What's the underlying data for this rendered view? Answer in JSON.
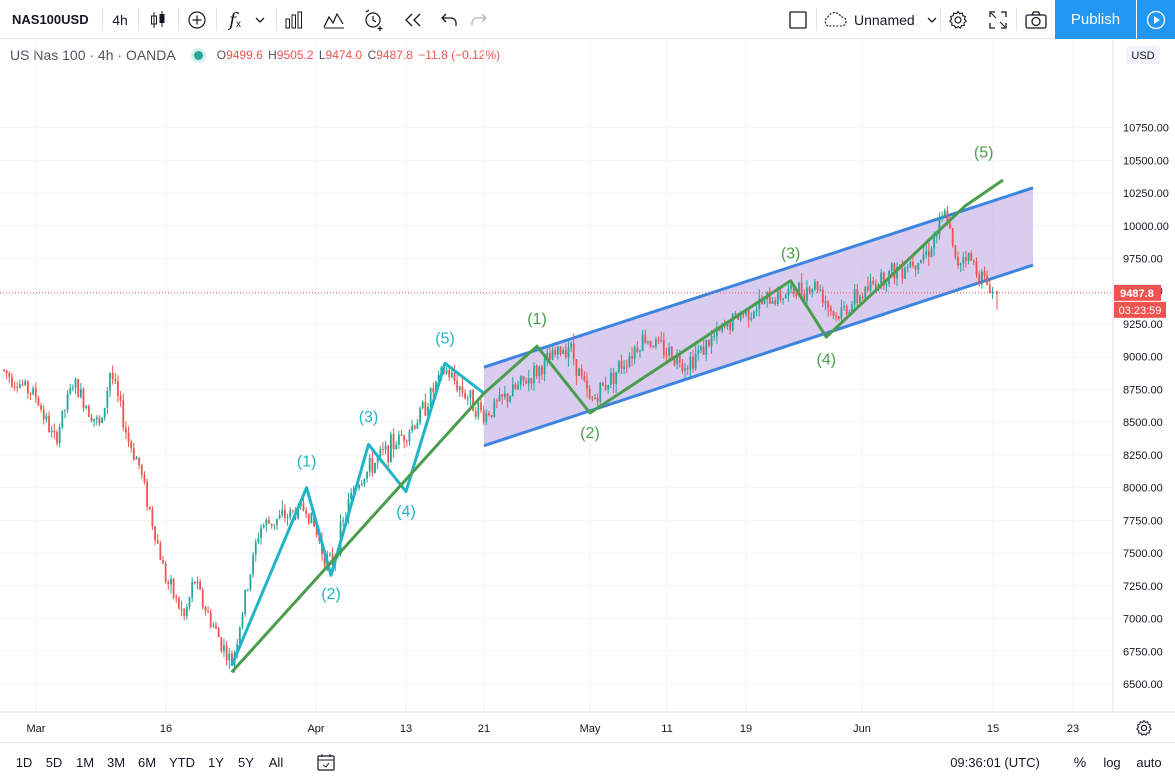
{
  "toolbar": {
    "symbol": "NAS100USD",
    "interval": "4h",
    "fx_label": "f",
    "fx_sub": "x",
    "layout_name": "Unnamed",
    "publish_label": "Publish"
  },
  "legend": {
    "title": "US Nas 100 · 4h · OANDA",
    "o_key": "O",
    "o": "9499.6",
    "h_key": "H",
    "h": "9505.2",
    "l_key": "L",
    "l": "9474.0",
    "c_key": "C",
    "c": "9487.8",
    "change": "−11.8 (−0.12%)"
  },
  "price_axis": {
    "currency": "USD",
    "ticks": [
      "10750.00",
      "10500.00",
      "10250.00",
      "10000.00",
      "9750.00",
      "9500.00",
      "9250.00",
      "9000.00",
      "8750.00",
      "8500.00",
      "8250.00",
      "8000.00",
      "7750.00",
      "7500.00",
      "7250.00",
      "7000.00",
      "6750.00",
      "6500.00"
    ],
    "last_price": "9487.8",
    "countdown": "03:23:59"
  },
  "time_axis": {
    "labels": [
      "Mar",
      "16",
      "Apr",
      "13",
      "21",
      "May",
      "11",
      "19",
      "Jun",
      "15",
      "23"
    ]
  },
  "bottombar": {
    "ranges": [
      "1D",
      "5D",
      "1M",
      "3M",
      "6M",
      "YTD",
      "1Y",
      "5Y",
      "All"
    ],
    "clock": "09:36:01 (UTC)",
    "percent": "%",
    "log": "log",
    "auto": "auto"
  },
  "chart_data": {
    "type": "candlestick",
    "price_range": [
      6350,
      11000
    ],
    "last_price": 9487.8,
    "close_path": [
      {
        "date": "Feb 27",
        "close": 8900
      },
      {
        "date": "Mar 2",
        "close": 8700
      },
      {
        "date": "Mar 4",
        "close": 8350
      },
      {
        "date": "Mar 6",
        "close": 8800
      },
      {
        "date": "Mar 9",
        "close": 8450
      },
      {
        "date": "Mar 10",
        "close": 8900
      },
      {
        "date": "Mar 12",
        "close": 8350
      },
      {
        "date": "Mar 13",
        "close": 8200
      },
      {
        "date": "Mar 16",
        "close": 7300
      },
      {
        "date": "Mar 18",
        "close": 7000
      },
      {
        "date": "Mar 19",
        "close": 7300
      },
      {
        "date": "Mar 20",
        "close": 7100
      },
      {
        "date": "Mar 23",
        "close": 6650
      },
      {
        "date": "Mar 26",
        "close": 7700
      },
      {
        "date": "Mar 31",
        "close": 7850
      },
      {
        "date": "Apr 2",
        "close": 7500
      },
      {
        "date": "Apr 3",
        "close": 7400
      },
      {
        "date": "Apr 6",
        "close": 8000
      },
      {
        "date": "Apr 9",
        "close": 8200
      },
      {
        "date": "Apr 14",
        "close": 8500
      },
      {
        "date": "Apr 17",
        "close": 8900
      },
      {
        "date": "Apr 21",
        "close": 8550
      },
      {
        "date": "Apr 24",
        "close": 8750
      },
      {
        "date": "Apr 29",
        "close": 9100
      },
      {
        "date": "May 1",
        "close": 8650
      },
      {
        "date": "May 8",
        "close": 9150
      },
      {
        "date": "May 13",
        "close": 8950
      },
      {
        "date": "May 18",
        "close": 9300
      },
      {
        "date": "May 22",
        "close": 9450
      },
      {
        "date": "May 27",
        "close": 9550
      },
      {
        "date": "May 29",
        "close": 9300
      },
      {
        "date": "Jun 3",
        "close": 9600
      },
      {
        "date": "Jun 8",
        "close": 9800
      },
      {
        "date": "Jun 10",
        "close": 10100
      },
      {
        "date": "Jun 11",
        "close": 9700
      },
      {
        "date": "Jun 12",
        "close": 9800
      },
      {
        "date": "Jun 15",
        "close": 9487.8
      }
    ],
    "annotations": {
      "impulse_labels": [
        "(1)",
        "(2)",
        "(3)",
        "(4)",
        "(5)"
      ],
      "channel_labels": [
        "(1)",
        "(2)",
        "(3)",
        "(4)",
        "(5)"
      ]
    },
    "colors": {
      "up": "#26a69a",
      "down": "#ef5350",
      "impulse": "#1fb5c7",
      "channel_wave": "#4a9d4c",
      "channel_border": "#3d84e0",
      "channel_fill": "#c9b6e8"
    }
  }
}
